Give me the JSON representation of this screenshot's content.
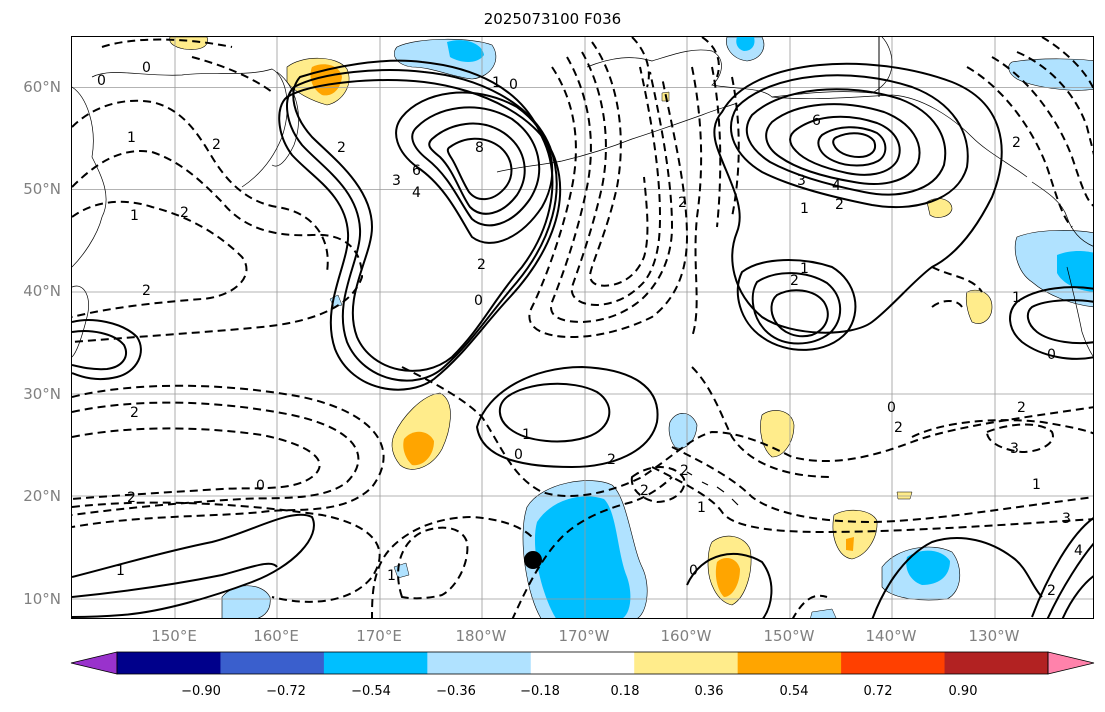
{
  "title": "2025073100 F036",
  "map": {
    "lat_ticks": [
      "60°N",
      "50°N",
      "40°N",
      "30°N",
      "20°N",
      "10°N"
    ],
    "lon_ticks": [
      "150°E",
      "160°E",
      "170°E",
      "180°W",
      "170°W",
      "160°W",
      "150°W",
      "140°W",
      "130°W"
    ],
    "grid": true,
    "marker": {
      "name": "black-dot",
      "lat": 14,
      "lon": -174.5
    }
  },
  "colorbar": {
    "tick_labels": [
      "−0.90",
      "−0.72",
      "−0.54",
      "−0.36",
      "−0.18",
      "0.18",
      "0.36",
      "0.54",
      "0.72",
      "0.90"
    ],
    "colors": [
      "#9932cc",
      "#00008b",
      "#3a5fcd",
      "#00bfff",
      "#b0e2ff",
      "#ffffff",
      "#ffec8b",
      "#ffa500",
      "#ff4000",
      "#b22222",
      "#ff82ab"
    ],
    "extend": "both"
  },
  "contours": {
    "solid_color": "#000000",
    "dashed_meaning": "negative",
    "labels": [
      "0",
      "0",
      "1",
      "1",
      "2",
      "2",
      "3",
      "4",
      "6",
      "8",
      "2",
      "1",
      "0",
      "0",
      "2",
      "3",
      "4",
      "6",
      "1",
      "2",
      "2",
      "1",
      "0",
      "0",
      "0",
      "1",
      "1",
      "2",
      "2",
      "2",
      "2",
      "2",
      "2",
      "3",
      "1",
      "1",
      "2",
      "0",
      "1",
      "2",
      "3",
      "4",
      "2",
      "0",
      "1",
      "2",
      "2"
    ]
  }
}
